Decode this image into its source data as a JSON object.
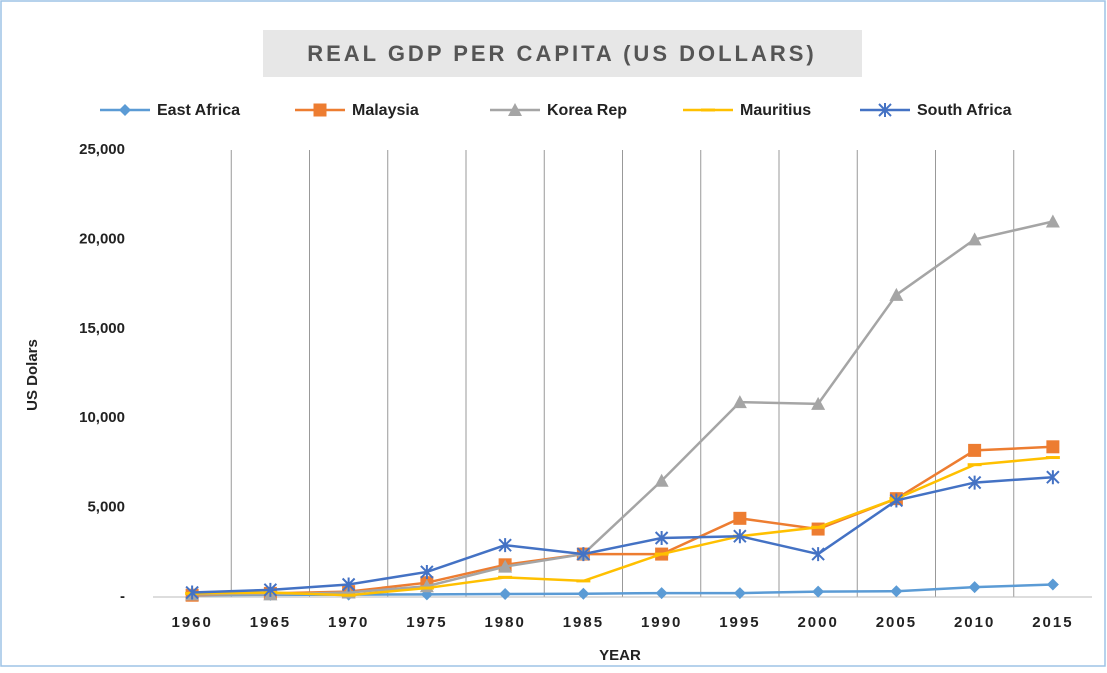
{
  "chart_data": {
    "type": "line",
    "title": "REAL GDP PER CAPITA (US DOLLARS)",
    "y_label": "US Dolars",
    "x_label": "YEAR",
    "categories": [
      "1960",
      "1965",
      "1970",
      "1975",
      "1980",
      "1985",
      "1990",
      "1995",
      "2000",
      "2005",
      "2010",
      "2015"
    ],
    "series": [
      {
        "name": "East Africa",
        "color": "#5b9bd5",
        "marker": "diamond",
        "values": [
          100,
          120,
          130,
          150,
          170,
          180,
          220,
          220,
          300,
          320,
          550,
          700
        ]
      },
      {
        "name": "Malaysia",
        "color": "#ed7d31",
        "marker": "square",
        "values": [
          100,
          200,
          300,
          800,
          1800,
          2400,
          2400,
          4400,
          3800,
          5500,
          8200,
          8400
        ]
      },
      {
        "name": "Korea Rep",
        "color": "#a5a5a5",
        "marker": "triangle",
        "values": [
          150,
          150,
          250,
          600,
          1700,
          2400,
          6500,
          10900,
          10800,
          16900,
          20000,
          21000
        ]
      },
      {
        "name": "Mauritius",
        "color": "#ffc000",
        "marker": "dash",
        "values": [
          200,
          250,
          100,
          500,
          1100,
          900,
          2400,
          3400,
          3900,
          5500,
          7400,
          7800
        ]
      },
      {
        "name": "South Africa",
        "color": "#4472c4",
        "marker": "star",
        "values": [
          250,
          400,
          700,
          1400,
          2900,
          2400,
          3300,
          3400,
          2400,
          5400,
          6400,
          6700
        ]
      }
    ],
    "ylim": [
      0,
      25000
    ],
    "yticks": [
      {
        "value": 0,
        "label": "-"
      },
      {
        "value": 5000,
        "label": "5,000"
      },
      {
        "value": 10000,
        "label": "10,000"
      },
      {
        "value": 15000,
        "label": "15,000"
      },
      {
        "value": 20000,
        "label": "20,000"
      },
      {
        "value": 25000,
        "label": "25,000"
      }
    ],
    "grid": "x",
    "legend": "top"
  }
}
